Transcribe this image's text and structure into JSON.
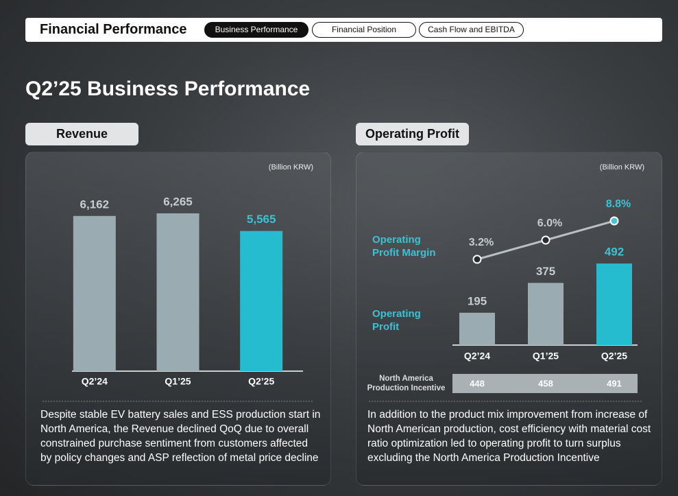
{
  "header": {
    "title": "Financial Performance",
    "tabs": [
      "Business Performance",
      "Financial Position",
      "Cash Flow and EBITDA"
    ]
  },
  "page_title": "Q2’25 Business Performance",
  "chart_data": [
    {
      "type": "bar",
      "title": "Revenue",
      "unit": "(Billion KRW)",
      "categories": [
        "Q2’24",
        "Q1’25",
        "Q2’25"
      ],
      "values": [
        6162,
        6265,
        5565
      ],
      "value_labels": [
        "6,162",
        "6,265",
        "5,565"
      ],
      "colors": [
        "#9aabb2",
        "#9aabb2",
        "#26bccf"
      ],
      "ylim": [
        0,
        7000
      ],
      "note": "Despite stable EV battery sales and ESS production start in North America, the Revenue declined QoQ due to overall constrained purchase sentiment from customers affected by policy changes and ASP reflection of metal price decline"
    },
    {
      "type": "bar_line",
      "title": "Operating Profit",
      "unit": "(Billion KRW)",
      "categories": [
        "Q2’24",
        "Q1’25",
        "Q2’25"
      ],
      "series": [
        {
          "name": "Operating Profit",
          "values": [
            195,
            375,
            492
          ],
          "colors": [
            "#9aabb2",
            "#9aabb2",
            "#26bccf"
          ]
        },
        {
          "name": "Operating Profit Margin",
          "values": [
            3.2,
            6.0,
            8.8
          ],
          "value_labels": [
            "3.2%",
            "6.0%",
            "8.8%"
          ],
          "axis": "y2",
          "color": "#b9c1c5",
          "point_colors": [
            "#2a2d30",
            "#2a2d30",
            "#4cc3d3"
          ]
        }
      ],
      "ylim": [
        0,
        600
      ],
      "y2lim": [
        0,
        10
      ],
      "table": {
        "label": "North America Production Incentive",
        "values": [
          448,
          458,
          491
        ]
      },
      "note": "In addition to the product mix improvement from increase of North American production, cost efficiency with material cost ratio optimization led to operating profit to turn surplus excluding the North America Production Incentive"
    }
  ]
}
